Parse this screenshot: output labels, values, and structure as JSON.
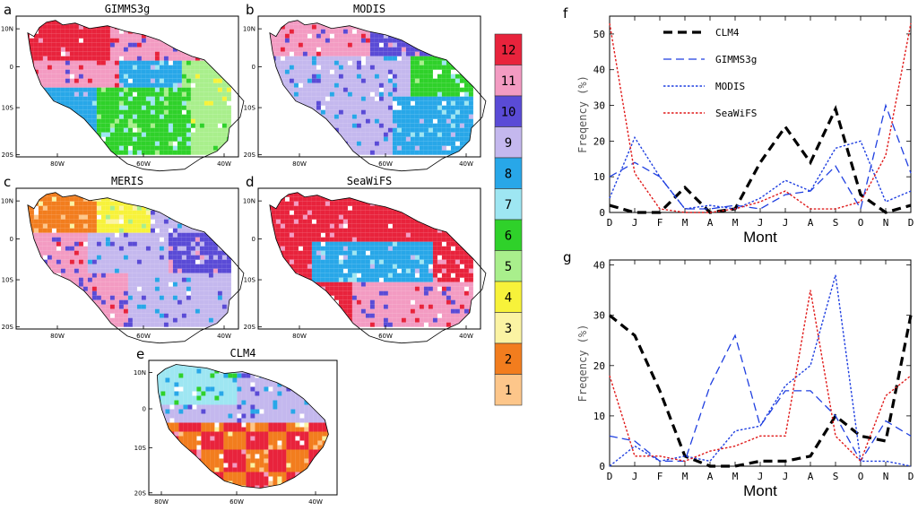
{
  "maps": [
    {
      "letter": "a",
      "title": "GIMMS3g"
    },
    {
      "letter": "b",
      "title": "MODIS"
    },
    {
      "letter": "c",
      "title": "MERIS"
    },
    {
      "letter": "d",
      "title": "SeaWiFS"
    },
    {
      "letter": "e",
      "title": "CLM4"
    }
  ],
  "map_axis": {
    "lat_labels": [
      "10N",
      "0",
      "10S",
      "20S"
    ],
    "lon_labels": [
      "80W",
      "60W",
      "40W"
    ]
  },
  "colorbar": {
    "labels": [
      "12",
      "11",
      "10",
      "9",
      "8",
      "7",
      "6",
      "5",
      "4",
      "3",
      "2",
      "1"
    ],
    "colors": [
      "#e8233c",
      "#f39bc2",
      "#5a4bd6",
      "#c4b8ee",
      "#28a7e8",
      "#9ee6f2",
      "#2fd12a",
      "#a9ef8c",
      "#f7f23a",
      "#fbf3a3",
      "#f27d1e",
      "#fdc68a"
    ]
  },
  "series_colors": {
    "CLM4": "#000000",
    "GIMMS3g": "#1f3fe0",
    "MODIS": "#1f3fe0",
    "SeaWiFS": "#e01a1a"
  },
  "chart_data": [
    {
      "type": "line",
      "letter": "f",
      "ylabel": "Freqency (%)",
      "xlabel": "Mont",
      "categories": [
        "D",
        "J",
        "F",
        "M",
        "A",
        "M",
        "J",
        "J",
        "A",
        "S",
        "O",
        "N",
        "D"
      ],
      "ylim": [
        0,
        55
      ],
      "yticks": [
        0,
        10,
        20,
        30,
        40,
        50
      ],
      "legend": [
        "CLM4",
        "GIMMS3g",
        "MODIS",
        "SeaWiFS"
      ],
      "series": [
        {
          "name": "CLM4",
          "values": [
            2,
            0,
            0,
            7,
            0,
            1,
            14,
            24,
            14,
            29,
            5,
            0,
            2
          ]
        },
        {
          "name": "GIMMS3g",
          "values": [
            10,
            14,
            10,
            1,
            1,
            2,
            1,
            5,
            6,
            13,
            1,
            30,
            11
          ]
        },
        {
          "name": "MODIS",
          "values": [
            4,
            21,
            10,
            1,
            2,
            1,
            4,
            9,
            6,
            18,
            20,
            3,
            6
          ]
        },
        {
          "name": "SeaWiFS",
          "values": [
            53,
            11,
            1,
            0,
            0,
            1,
            3,
            6,
            1,
            1,
            3,
            16,
            53
          ]
        }
      ]
    },
    {
      "type": "line",
      "letter": "g",
      "ylabel": "Freqency (%)",
      "xlabel": "Mont",
      "categories": [
        "D",
        "J",
        "F",
        "M",
        "A",
        "M",
        "J",
        "J",
        "A",
        "S",
        "O",
        "N",
        "D"
      ],
      "ylim": [
        0,
        41
      ],
      "yticks": [
        0,
        10,
        20,
        30,
        40
      ],
      "series": [
        {
          "name": "CLM4",
          "values": [
            30,
            26,
            15,
            2,
            0,
            0,
            1,
            1,
            2,
            10,
            6,
            5,
            30
          ]
        },
        {
          "name": "GIMMS3g",
          "values": [
            6,
            5,
            1,
            1,
            16,
            26,
            8,
            15,
            15,
            10,
            1,
            9,
            6
          ]
        },
        {
          "name": "MODIS",
          "values": [
            0,
            4,
            1,
            2,
            1,
            7,
            8,
            16,
            20,
            38,
            1,
            1,
            0
          ]
        },
        {
          "name": "SeaWiFS",
          "values": [
            18,
            2,
            2,
            1,
            3,
            4,
            6,
            6,
            35,
            6,
            1,
            14,
            18
          ]
        }
      ]
    }
  ]
}
